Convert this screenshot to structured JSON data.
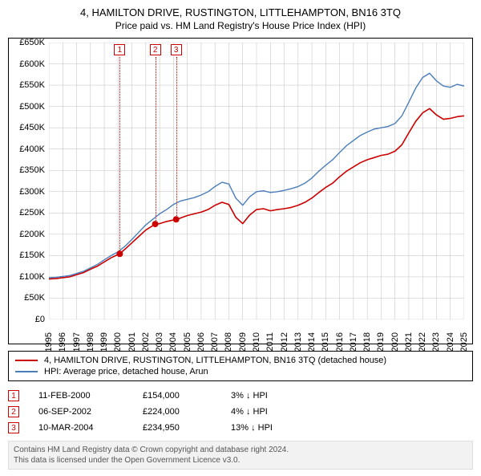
{
  "title": "4, HAMILTON DRIVE, RUSTINGTON, LITTLEHAMPTON, BN16 3TQ",
  "subtitle": "Price paid vs. HM Land Registry's House Price Index (HPI)",
  "chart": {
    "type": "line",
    "background_color": "#ffffff",
    "grid_color": "#bfbfbf",
    "grid_width": 0.5,
    "axis_color": "#000000",
    "y": {
      "min": 0,
      "max": 650000,
      "step": 50000,
      "ticks": [
        "£0",
        "£50K",
        "£100K",
        "£150K",
        "£200K",
        "£250K",
        "£300K",
        "£350K",
        "£400K",
        "£450K",
        "£500K",
        "£550K",
        "£600K",
        "£650K"
      ],
      "label_fontsize": 11
    },
    "x": {
      "min": 1995,
      "max": 2025,
      "step": 1,
      "ticks": [
        "1995",
        "1996",
        "1997",
        "1998",
        "1999",
        "2000",
        "2001",
        "2002",
        "2003",
        "2004",
        "2005",
        "2006",
        "2007",
        "2008",
        "2009",
        "2010",
        "2011",
        "2012",
        "2013",
        "2014",
        "2015",
        "2016",
        "2017",
        "2018",
        "2019",
        "2020",
        "2021",
        "2022",
        "2023",
        "2024",
        "2025"
      ],
      "label_fontsize": 11
    },
    "series": [
      {
        "id": "property",
        "label": "4, HAMILTON DRIVE, RUSTINGTON, LITTLEHAMPTON, BN16 3TQ (detached house)",
        "color": "#cc0000",
        "width": 1.6,
        "x": [
          1995.0,
          1995.5,
          1996.0,
          1996.5,
          1997.0,
          1997.5,
          1998.0,
          1998.5,
          1999.0,
          1999.5,
          2000.1,
          2000.5,
          2001.0,
          2001.5,
          2002.0,
          2002.7,
          2003.0,
          2003.5,
          2004.2,
          2004.5,
          2005.0,
          2005.5,
          2006.0,
          2006.5,
          2007.0,
          2007.5,
          2008.0,
          2008.5,
          2009.0,
          2009.5,
          2010.0,
          2010.5,
          2011.0,
          2011.5,
          2012.0,
          2012.5,
          2013.0,
          2013.5,
          2014.0,
          2014.5,
          2015.0,
          2015.5,
          2016.0,
          2016.5,
          2017.0,
          2017.5,
          2018.0,
          2018.5,
          2019.0,
          2019.5,
          2020.0,
          2020.5,
          2021.0,
          2021.5,
          2022.0,
          2022.5,
          2023.0,
          2023.5,
          2024.0,
          2024.5,
          2025.0
        ],
        "y": [
          95000,
          96000,
          98000,
          100000,
          105000,
          110000,
          118000,
          125000,
          135000,
          145000,
          154000,
          165000,
          180000,
          195000,
          210000,
          224000,
          225000,
          230000,
          234950,
          238000,
          244000,
          248000,
          252000,
          258000,
          268000,
          275000,
          270000,
          240000,
          225000,
          245000,
          258000,
          260000,
          255000,
          258000,
          260000,
          263000,
          268000,
          275000,
          285000,
          298000,
          310000,
          320000,
          335000,
          348000,
          358000,
          368000,
          375000,
          380000,
          385000,
          388000,
          395000,
          410000,
          438000,
          465000,
          485000,
          495000,
          480000,
          470000,
          472000,
          476000,
          478000
        ]
      },
      {
        "id": "hpi",
        "label": "HPI: Average price, detached house, Arun",
        "color": "#4a7ebb",
        "width": 1.4,
        "x": [
          1995.0,
          1995.5,
          1996.0,
          1996.5,
          1997.0,
          1997.5,
          1998.0,
          1998.5,
          1999.0,
          1999.5,
          2000.0,
          2000.5,
          2001.0,
          2001.5,
          2002.0,
          2002.5,
          2003.0,
          2003.5,
          2004.0,
          2004.5,
          2005.0,
          2005.5,
          2006.0,
          2006.5,
          2007.0,
          2007.5,
          2008.0,
          2008.5,
          2009.0,
          2009.5,
          2010.0,
          2010.5,
          2011.0,
          2011.5,
          2012.0,
          2012.5,
          2013.0,
          2013.5,
          2014.0,
          2014.5,
          2015.0,
          2015.5,
          2016.0,
          2016.5,
          2017.0,
          2017.5,
          2018.0,
          2018.5,
          2019.0,
          2019.5,
          2020.0,
          2020.5,
          2021.0,
          2021.5,
          2022.0,
          2022.5,
          2023.0,
          2023.5,
          2024.0,
          2024.5,
          2025.0
        ],
        "y": [
          98000,
          99000,
          101000,
          103000,
          108000,
          113000,
          121000,
          129000,
          140000,
          150000,
          159000,
          172000,
          188000,
          205000,
          222000,
          235000,
          248000,
          258000,
          270000,
          278000,
          282000,
          286000,
          292000,
          300000,
          312000,
          322000,
          318000,
          285000,
          268000,
          288000,
          300000,
          302000,
          298000,
          300000,
          303000,
          307000,
          312000,
          320000,
          332000,
          348000,
          362000,
          375000,
          392000,
          408000,
          420000,
          432000,
          440000,
          447000,
          450000,
          453000,
          460000,
          478000,
          510000,
          543000,
          568000,
          578000,
          560000,
          548000,
          545000,
          552000,
          548000
        ]
      }
    ],
    "sale_markers": [
      {
        "n": "1",
        "x": 2000.12,
        "y": 154000
      },
      {
        "n": "2",
        "x": 2002.68,
        "y": 224000
      },
      {
        "n": "3",
        "x": 2004.19,
        "y": 234950
      }
    ],
    "sale_point_color": "#cc0000",
    "sale_point_radius": 4
  },
  "transactions": [
    {
      "n": "1",
      "date": "11-FEB-2000",
      "price": "£154,000",
      "diff": "3% ↓ HPI"
    },
    {
      "n": "2",
      "date": "06-SEP-2002",
      "price": "£224,000",
      "diff": "4% ↓ HPI"
    },
    {
      "n": "3",
      "date": "10-MAR-2004",
      "price": "£234,950",
      "diff": "13% ↓ HPI"
    }
  ],
  "credits": {
    "line1": "Contains HM Land Registry data © Crown copyright and database right 2024.",
    "line2": "This data is licensed under the Open Government Licence v3.0."
  }
}
